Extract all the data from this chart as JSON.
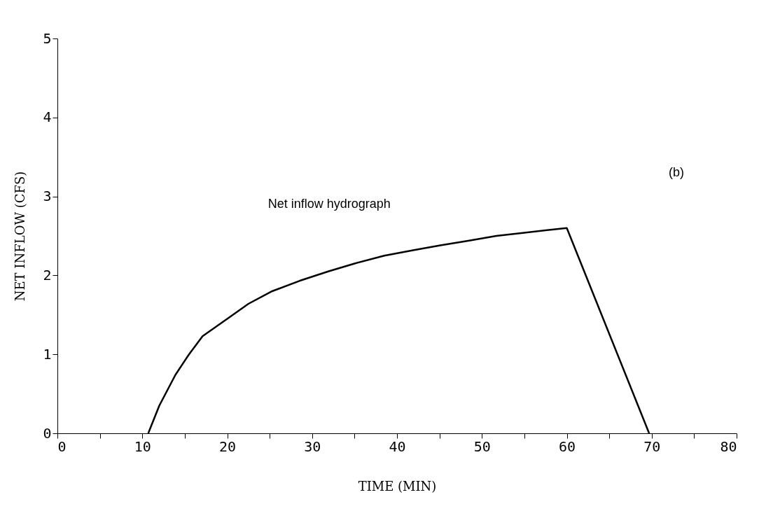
{
  "chart_data": {
    "type": "line",
    "xlabel": "TIME (MIN)",
    "ylabel": "NET INFLOW (CFS)",
    "annotations": [
      "Net inflow hydrograph",
      "(b)"
    ],
    "xlim": [
      0,
      80
    ],
    "ylim": [
      0,
      5
    ],
    "xticks": [
      0,
      {
        "value": 5,
        "label": null
      },
      10,
      {
        "value": 15,
        "label": null
      },
      20,
      {
        "value": 25,
        "label": null
      },
      30,
      {
        "value": 35,
        "label": null
      },
      40,
      {
        "value": 45,
        "label": null
      },
      50,
      {
        "value": 55,
        "label": null
      },
      60,
      {
        "value": 65,
        "label": null
      },
      70,
      {
        "value": 75,
        "label": null
      },
      80
    ],
    "yticks": [
      0,
      1,
      2,
      3,
      4,
      5
    ],
    "grid": false,
    "marker": "none",
    "line_style": "solid",
    "series": [
      {
        "color": "#000000",
        "x": [
          10.7,
          12,
          13.9,
          15.5,
          17.1,
          20,
          22.5,
          25.3,
          28.5,
          31.9,
          35,
          38.5,
          42,
          45.1,
          48.5,
          51.7,
          55,
          57.5,
          60,
          69.7
        ],
        "values": [
          0,
          0.35,
          0.74,
          1.0,
          1.23,
          1.45,
          1.64,
          1.8,
          1.93,
          2.05,
          2.15,
          2.25,
          2.32,
          2.38,
          2.44,
          2.5,
          2.54,
          2.57,
          2.6,
          0
        ]
      }
    ]
  }
}
